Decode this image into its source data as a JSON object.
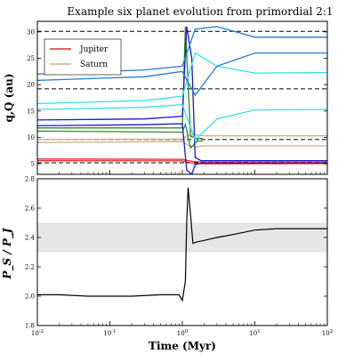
{
  "chart_data": [
    {
      "type": "line",
      "title": "Example six planet evolution from primordial 2:1",
      "xlabel": "",
      "ylabel": "q,Q (au)",
      "xscale": "log",
      "xlim": [
        0.01,
        100
      ],
      "ylim": [
        3,
        32
      ],
      "yticks": [
        5,
        10,
        15,
        20,
        25,
        30
      ],
      "grid": false,
      "legend_position": "top-left",
      "colors": {
        "jupiter": "#e8262a",
        "saturn": "#c9ae8c",
        "planet3": "#2b8a2b",
        "planet4": "#1a1acc",
        "planet5": "#33e0e8",
        "planet6": "#1f7bd6",
        "reference": "#000000"
      },
      "reference_lines": [
        5.2,
        9.6,
        19.2,
        30.1
      ],
      "legend": [
        {
          "name": "Jupiter",
          "color_key": "jupiter"
        },
        {
          "name": "Saturn",
          "color_key": "saturn"
        }
      ],
      "series": [
        {
          "name": "Jupiter",
          "color_key": "jupiter",
          "x": [
            0.01,
            1.0,
            1.2,
            1.5,
            2,
            100
          ],
          "q": [
            5.6,
            5.55,
            5.3,
            5.0,
            5.0,
            5.05
          ],
          "Q": [
            5.9,
            5.85,
            5.6,
            5.4,
            5.35,
            5.35
          ]
        },
        {
          "name": "Saturn",
          "color_key": "saturn",
          "x": [
            0.01,
            1.0,
            1.2,
            1.5,
            2,
            100
          ],
          "q": [
            9.0,
            9.2,
            8.5,
            8.2,
            8.4,
            8.4
          ],
          "Q": [
            9.6,
            9.7,
            10.4,
            10.5,
            10.3,
            10.3
          ]
        },
        {
          "color_key": "planet3",
          "x": [
            0.01,
            1.0,
            1.1,
            1.3,
            1.6,
            1.9
          ],
          "q": [
            11.2,
            11.0,
            12.5,
            8.0,
            9.3,
            9.3
          ],
          "Q": [
            11.8,
            11.8,
            31.0,
            10.2,
            9.8,
            9.8
          ]
        },
        {
          "color_key": "planet4",
          "x": [
            0.01,
            0.3,
            1.0,
            1.15,
            1.35,
            1.5,
            1.8,
            100
          ],
          "q": [
            12.2,
            12.4,
            12.6,
            3.8,
            3.0,
            4.8,
            5.1,
            5.1
          ],
          "Q": [
            13.3,
            13.5,
            14.0,
            31.0,
            25.0,
            6.2,
            5.6,
            5.6
          ]
        },
        {
          "color_key": "planet5",
          "x": [
            0.01,
            0.3,
            1.0,
            1.5,
            3,
            10,
            100
          ],
          "q": [
            15.3,
            15.7,
            16.2,
            9.5,
            13.5,
            15.2,
            15.3
          ],
          "Q": [
            16.4,
            17.0,
            17.8,
            26.0,
            23.5,
            22.2,
            22.3
          ]
        },
        {
          "color_key": "planet6",
          "x": [
            0.01,
            0.3,
            1.0,
            1.5,
            3,
            10,
            100
          ],
          "q": [
            20.8,
            21.5,
            22.5,
            18.0,
            23.5,
            26.0,
            26.0
          ],
          "Q": [
            22.0,
            22.8,
            23.5,
            30.5,
            31.0,
            29.0,
            29.0
          ]
        }
      ]
    },
    {
      "type": "line",
      "title": "",
      "xlabel": "Time (Myr)",
      "ylabel": "P_S / P_J",
      "xscale": "log",
      "xlim": [
        0.01,
        100
      ],
      "ylim": [
        1.8,
        2.8
      ],
      "yticks": [
        1.8,
        2.0,
        2.2,
        2.4,
        2.6,
        2.8
      ],
      "xticks": [
        "10^-2",
        "10^-1",
        "10^0",
        "10^1",
        "10^2"
      ],
      "grid": false,
      "shaded_band": [
        2.3,
        2.5
      ],
      "shaded_color": "#e6e6e6",
      "series": [
        {
          "color": "#000000",
          "x": [
            0.01,
            0.02,
            0.05,
            0.1,
            0.2,
            0.5,
            0.9,
            1.0,
            1.1,
            1.15,
            1.2,
            1.3,
            1.4,
            1.6,
            2,
            3,
            5,
            10,
            20,
            50,
            100
          ],
          "y": [
            2.01,
            2.01,
            2.0,
            2.0,
            2.0,
            2.01,
            2.01,
            1.97,
            2.1,
            2.5,
            2.74,
            2.55,
            2.36,
            2.37,
            2.38,
            2.4,
            2.42,
            2.45,
            2.46,
            2.46,
            2.46
          ]
        }
      ]
    }
  ]
}
